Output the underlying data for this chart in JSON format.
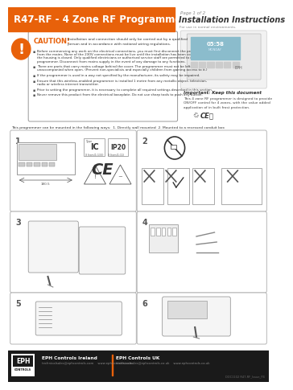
{
  "title": "R47-RF - 4 Zone RF Programmer",
  "title_bg": "#E8610A",
  "title_color": "#FFFFFF",
  "page_label": "Page 1 of 2",
  "page_subtitle": "Installation Instructions",
  "page_subtitle2": "For use in normal environments.",
  "caution_title": "CAUTION!",
  "caution_color": "#E8610A",
  "caution_text1": "Installation and connection should only be carried out by a qualified\nperson and in accordance with national wiring regulations.",
  "bullets": [
    "Before commencing any work on the electrical connections, you must first disconnect the programmer from the mains. None of the 230V connections must be live until the installation has been completed and the housing is closed. Only qualified electricians or authorised service staff are permitted to open the programmer. Disconnect from mains supply in the event of any damage to any functions.",
    "There are parts that carry mains voltage behind the cover. The programmer must not be left unaccompanied when open. (Prevent non-specialists and especially children from gaining access to it.)",
    "If the programmer is used in a way not specified by the manufacturer, its safety may be impaired.",
    "Ensure that this wireless-enabled programmer is installed 1 metre from any metallic object, television, radio or wireless internet transmitter.",
    "Prior to setting the programmer, it is necessary to complete all required settings described in this section.",
    "Never remove this product from the electrical baseplate. Do not use sharp tools to push any button."
  ],
  "important_title": "Important: Keep this document",
  "important_text": "This 4 zone RF programmer is designed to provide\nON/OFF control for 4 zones, with the value added\napplication of in built frost protection.",
  "mounting_text": "This programmer can be mounted in the following ways:  1. Directly wall mounted  2. Mounted to a recessed conduit box",
  "section_labels": [
    "1",
    "2",
    "3",
    "4",
    "5",
    "6"
  ],
  "footer_bg": "#1A1A1A",
  "footer_title1": "EPH Controls Ireland",
  "footer_text1": "technicalsales@ephcontrols.com    www.ephcontrols.com",
  "footer_title2": "EPH Controls UK",
  "footer_text2": "technicalsales@ephcontrols.co.uk    www.ephcontrols.co.uk",
  "footer_ref": "DOC1102 R47-RF_Issue_P4",
  "orange": "#E8610A",
  "dark": "#1A1A1A",
  "gray_border": "#AAAAAA",
  "light_gray": "#F0F0F0",
  "mid_gray": "#CCCCCC"
}
